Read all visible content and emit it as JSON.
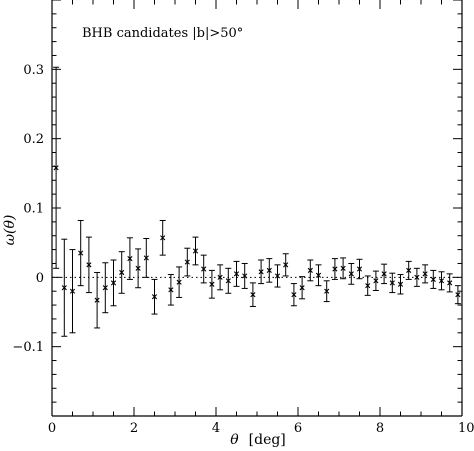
{
  "chart_data": {
    "type": "scatter",
    "annotation": "BHB candidates |b|>50°",
    "xlabel_symbol": "θ",
    "xlabel_unit": "[deg]",
    "ylabel": "ω(θ)",
    "xlim": [
      0,
      10
    ],
    "ylim": [
      -0.2,
      0.4
    ],
    "x_ticks": [
      0,
      2,
      4,
      6,
      8,
      10
    ],
    "x_tick_labels": [
      "0",
      "2",
      "4",
      "6",
      "8",
      "10"
    ],
    "y_ticks": [
      -0.1,
      0,
      0.1,
      0.2,
      0.3
    ],
    "y_tick_labels": [
      "−0.1",
      "0",
      "0.1",
      "0.2",
      "0.3"
    ],
    "reference_line": {
      "y": 0,
      "style": "dotted"
    },
    "marker": "x",
    "points": [
      {
        "x": 0.1,
        "y": 0.158,
        "err": 0.145
      },
      {
        "x": 0.3,
        "y": -0.015,
        "err": 0.07
      },
      {
        "x": 0.5,
        "y": -0.02,
        "err": 0.06
      },
      {
        "x": 0.7,
        "y": 0.035,
        "err": 0.047
      },
      {
        "x": 0.9,
        "y": 0.018,
        "err": 0.04
      },
      {
        "x": 1.1,
        "y": -0.033,
        "err": 0.04
      },
      {
        "x": 1.3,
        "y": -0.015,
        "err": 0.036
      },
      {
        "x": 1.5,
        "y": -0.008,
        "err": 0.033
      },
      {
        "x": 1.7,
        "y": 0.007,
        "err": 0.03
      },
      {
        "x": 1.9,
        "y": 0.027,
        "err": 0.03
      },
      {
        "x": 2.1,
        "y": 0.013,
        "err": 0.028
      },
      {
        "x": 2.3,
        "y": 0.028,
        "err": 0.028
      },
      {
        "x": 2.5,
        "y": -0.028,
        "err": 0.025
      },
      {
        "x": 2.7,
        "y": 0.057,
        "err": 0.025
      },
      {
        "x": 2.9,
        "y": -0.018,
        "err": 0.022
      },
      {
        "x": 3.1,
        "y": -0.007,
        "err": 0.022
      },
      {
        "x": 3.3,
        "y": 0.022,
        "err": 0.02
      },
      {
        "x": 3.5,
        "y": 0.038,
        "err": 0.02
      },
      {
        "x": 3.7,
        "y": 0.012,
        "err": 0.02
      },
      {
        "x": 3.9,
        "y": -0.01,
        "err": 0.02
      },
      {
        "x": 4.1,
        "y": 0.0,
        "err": 0.018
      },
      {
        "x": 4.3,
        "y": -0.005,
        "err": 0.018
      },
      {
        "x": 4.5,
        "y": 0.005,
        "err": 0.018
      },
      {
        "x": 4.7,
        "y": 0.002,
        "err": 0.018
      },
      {
        "x": 4.9,
        "y": -0.025,
        "err": 0.017
      },
      {
        "x": 5.1,
        "y": 0.008,
        "err": 0.017
      },
      {
        "x": 5.3,
        "y": 0.01,
        "err": 0.017
      },
      {
        "x": 5.5,
        "y": 0.002,
        "err": 0.016
      },
      {
        "x": 5.7,
        "y": 0.018,
        "err": 0.016
      },
      {
        "x": 5.9,
        "y": -0.025,
        "err": 0.016
      },
      {
        "x": 6.1,
        "y": -0.015,
        "err": 0.016
      },
      {
        "x": 6.3,
        "y": 0.01,
        "err": 0.015
      },
      {
        "x": 6.5,
        "y": 0.003,
        "err": 0.015
      },
      {
        "x": 6.7,
        "y": -0.02,
        "err": 0.015
      },
      {
        "x": 6.9,
        "y": 0.012,
        "err": 0.015
      },
      {
        "x": 7.1,
        "y": 0.013,
        "err": 0.015
      },
      {
        "x": 7.3,
        "y": 0.005,
        "err": 0.015
      },
      {
        "x": 7.5,
        "y": 0.012,
        "err": 0.014
      },
      {
        "x": 7.7,
        "y": -0.012,
        "err": 0.014
      },
      {
        "x": 7.9,
        "y": -0.005,
        "err": 0.014
      },
      {
        "x": 8.1,
        "y": 0.005,
        "err": 0.014
      },
      {
        "x": 8.3,
        "y": -0.008,
        "err": 0.014
      },
      {
        "x": 8.5,
        "y": -0.01,
        "err": 0.014
      },
      {
        "x": 8.7,
        "y": 0.01,
        "err": 0.013
      },
      {
        "x": 8.9,
        "y": 0.0,
        "err": 0.013
      },
      {
        "x": 9.1,
        "y": 0.005,
        "err": 0.013
      },
      {
        "x": 9.3,
        "y": -0.003,
        "err": 0.013
      },
      {
        "x": 9.5,
        "y": -0.005,
        "err": 0.013
      },
      {
        "x": 9.7,
        "y": -0.008,
        "err": 0.013
      },
      {
        "x": 9.9,
        "y": -0.025,
        "err": 0.013
      }
    ]
  }
}
